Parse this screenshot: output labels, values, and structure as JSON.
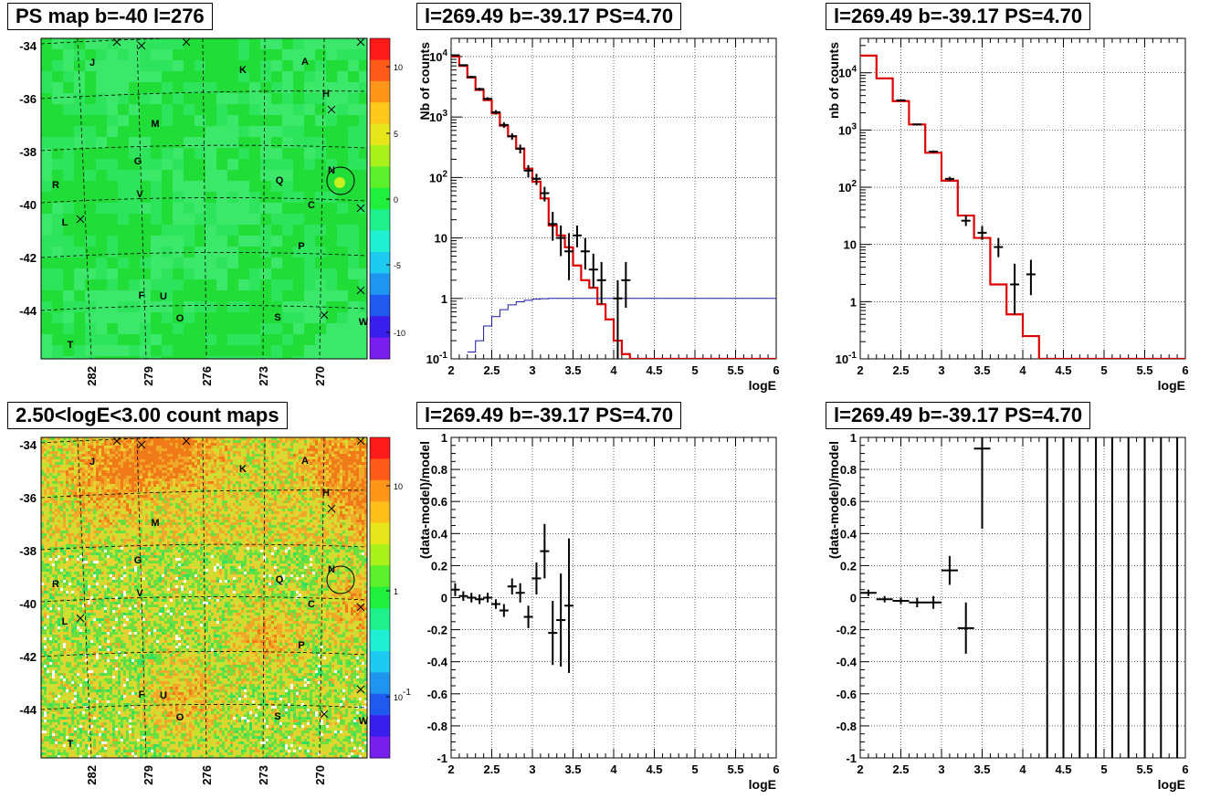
{
  "titles": {
    "map_ps": "PS map b=-40 l=276",
    "map_counts": "2.50<logE<3.00 count maps",
    "spec1": "l=269.49 b=-39.17 PS=4.70",
    "spec2": "l=269.49 b=-39.17 PS=4.70",
    "res1": "l=269.49 b=-39.17 PS=4.70",
    "res2": "l=269.49 b=-39.17 PS=4.70"
  },
  "map_axes": {
    "lat_ticks": [
      "-34",
      "-36",
      "-38",
      "-40",
      "-42",
      "-44"
    ],
    "lon_ticks": [
      "282",
      "279",
      "276",
      "273",
      "270"
    ]
  },
  "map_labels": [
    "J",
    "K",
    "A",
    "H",
    "M",
    "G",
    "N",
    "R",
    "V",
    "Q",
    "C",
    "L",
    "P",
    "F",
    "U",
    "O",
    "S",
    "W",
    "T"
  ],
  "colorbar_ps": {
    "ticks": [
      "10",
      "5",
      "0",
      "-5",
      "-10"
    ]
  },
  "colorbar_counts": {
    "ticks": [
      "10",
      "1",
      "10-1"
    ]
  },
  "colors": {
    "model": "#dd0000",
    "efficiency": "#1a1aa6",
    "map_bg": "#22dd22",
    "marker": "#000000"
  },
  "chart_data": [
    {
      "type": "line",
      "title": "l=269.49 b=-39.17 PS=4.70",
      "xlabel": "logE",
      "ylabel": "Nb of counts",
      "log_y": true,
      "xlim": [
        2,
        6
      ],
      "ylim": [
        0.1,
        20000
      ],
      "x_ticks": [
        "2",
        "2.5",
        "3",
        "3.5",
        "4",
        "4.5",
        "5",
        "5.5",
        "6"
      ],
      "y_ticks": [
        "10-1",
        "1",
        "10",
        "102",
        "103",
        "104"
      ],
      "grid": true,
      "series": [
        {
          "kind": "step",
          "edges": [
            2,
            2.1,
            2.2,
            2.3,
            2.4,
            2.5,
            2.6,
            2.7,
            2.8,
            2.9,
            3,
            3.1,
            3.2,
            3.3,
            3.4,
            3.5,
            3.6,
            3.7,
            3.8,
            3.9,
            4,
            4.1,
            4.2,
            6
          ],
          "values": [
            10000,
            7000,
            4500,
            2800,
            1900,
            1150,
            720,
            480,
            300,
            140,
            85,
            45,
            16,
            11,
            7,
            3.5,
            2,
            1.5,
            0.8,
            0.45,
            0.2,
            0.12,
            0.1
          ]
        },
        {
          "kind": "step",
          "edges": [
            2.2,
            2.3,
            2.4,
            2.5,
            2.6,
            2.7,
            2.8,
            2.9,
            3,
            3.1,
            3.2,
            6
          ],
          "values": [
            0.13,
            0.2,
            0.35,
            0.5,
            0.65,
            0.78,
            0.88,
            0.93,
            0.97,
            0.99,
            1.0
          ]
        },
        {
          "kind": "points",
          "x": [
            2.05,
            2.15,
            2.25,
            2.35,
            2.45,
            2.55,
            2.65,
            2.75,
            2.85,
            2.95,
            3.05,
            3.15,
            3.25,
            3.35,
            3.45,
            3.55,
            3.65,
            3.75,
            3.85,
            3.95,
            4.05,
            4.15
          ],
          "y": [
            10500,
            7200,
            4600,
            2900,
            2000,
            1200,
            740,
            480,
            300,
            130,
            95,
            55,
            17,
            10,
            6,
            11,
            6,
            3,
            2,
            0,
            1,
            2
          ],
          "err_low": [
            300,
            250,
            200,
            150,
            120,
            100,
            80,
            60,
            50,
            30,
            20,
            15,
            8,
            5,
            4,
            4,
            3,
            1.5,
            1.2,
            0,
            0.9,
            1.3
          ],
          "err_high": [
            300,
            250,
            200,
            150,
            120,
            100,
            80,
            60,
            50,
            30,
            20,
            15,
            10,
            6,
            6,
            5,
            4,
            2.5,
            2,
            0,
            1,
            2
          ]
        }
      ]
    },
    {
      "type": "line",
      "title": "l=269.49 b=-39.17 PS=4.70",
      "xlabel": "logE",
      "ylabel": "nb of counts",
      "log_y": true,
      "xlim": [
        2,
        6
      ],
      "ylim": [
        0.1,
        40000
      ],
      "x_ticks": [
        "2",
        "2.5",
        "3",
        "3.5",
        "4",
        "4.5",
        "5",
        "5.5",
        "6"
      ],
      "y_ticks": [
        "10-1",
        "1",
        "10",
        "102",
        "103",
        "104"
      ],
      "grid": true,
      "series": [
        {
          "kind": "step",
          "edges": [
            2,
            2.2,
            2.4,
            2.6,
            2.8,
            3,
            3.2,
            3.4,
            3.6,
            3.8,
            4,
            4.2,
            6
          ],
          "values": [
            20000,
            8000,
            3200,
            1250,
            400,
            130,
            32,
            13,
            2,
            0.6,
            0.25,
            0.1
          ]
        },
        {
          "kind": "points",
          "x": [
            2.5,
            2.7,
            2.9,
            3.1,
            3.3,
            3.5,
            3.7,
            3.9,
            4.1
          ],
          "y": [
            3300,
            1250,
            420,
            140,
            26,
            16,
            9,
            2,
            3
          ],
          "err_low": [
            60,
            35,
            20,
            12,
            5,
            4,
            3,
            1.4,
            1.7
          ],
          "err_high": [
            60,
            35,
            20,
            12,
            6,
            5,
            4,
            2.6,
            2.4
          ]
        }
      ]
    },
    {
      "type": "scatter",
      "title": "l=269.49 b=-39.17 PS=4.70",
      "xlabel": "logE",
      "ylabel": "(data-model)/model",
      "xlim": [
        2,
        6
      ],
      "ylim": [
        -1,
        1
      ],
      "x_ticks": [
        "2",
        "2.5",
        "3",
        "3.5",
        "4",
        "4.5",
        "5",
        "5.5",
        "6"
      ],
      "y_ticks": [
        "-1",
        "-0.8",
        "-0.6",
        "-0.4",
        "-0.2",
        "0",
        "0.2",
        "0.4",
        "0.6",
        "0.8",
        "1"
      ],
      "grid": true,
      "series": [
        {
          "kind": "points",
          "x": [
            2.05,
            2.15,
            2.25,
            2.35,
            2.45,
            2.55,
            2.65,
            2.75,
            2.85,
            2.95,
            3.05,
            3.15,
            3.25,
            3.35,
            3.45
          ],
          "y": [
            0.05,
            0.01,
            0.0,
            -0.01,
            0.0,
            -0.04,
            -0.08,
            0.07,
            0.03,
            -0.12,
            0.12,
            0.29,
            -0.22,
            -0.14,
            -0.05
          ],
          "err": [
            0.04,
            0.03,
            0.03,
            0.03,
            0.03,
            0.03,
            0.04,
            0.05,
            0.06,
            0.07,
            0.1,
            0.17,
            0.2,
            0.29,
            0.42
          ]
        }
      ]
    },
    {
      "type": "scatter",
      "title": "l=269.49 b=-39.17 PS=4.70",
      "xlabel": "logE",
      "ylabel": "(data-model)/model",
      "xlim": [
        2,
        6
      ],
      "ylim": [
        -1,
        1
      ],
      "x_ticks": [
        "2",
        "2.5",
        "3",
        "3.5",
        "4",
        "4.5",
        "5",
        "5.5",
        "6"
      ],
      "y_ticks": [
        "-1",
        "-0.8",
        "-0.6",
        "-0.4",
        "-0.2",
        "0",
        "0.2",
        "0.4",
        "0.6",
        "0.8",
        "1"
      ],
      "grid": true,
      "series": [
        {
          "kind": "points",
          "x": [
            2.1,
            2.3,
            2.5,
            2.7,
            2.9,
            3.1,
            3.3,
            3.5
          ],
          "y": [
            0.03,
            -0.01,
            -0.02,
            -0.03,
            -0.03,
            0.17,
            -0.19,
            0.93
          ],
          "err": [
            0.02,
            0.02,
            0.02,
            0.03,
            0.04,
            0.09,
            0.16,
            0.5
          ]
        },
        {
          "kind": "full_range_bars",
          "x": [
            4.3,
            4.5,
            4.7,
            4.9,
            5.1,
            5.3,
            5.5,
            5.7,
            5.9
          ]
        }
      ]
    }
  ]
}
